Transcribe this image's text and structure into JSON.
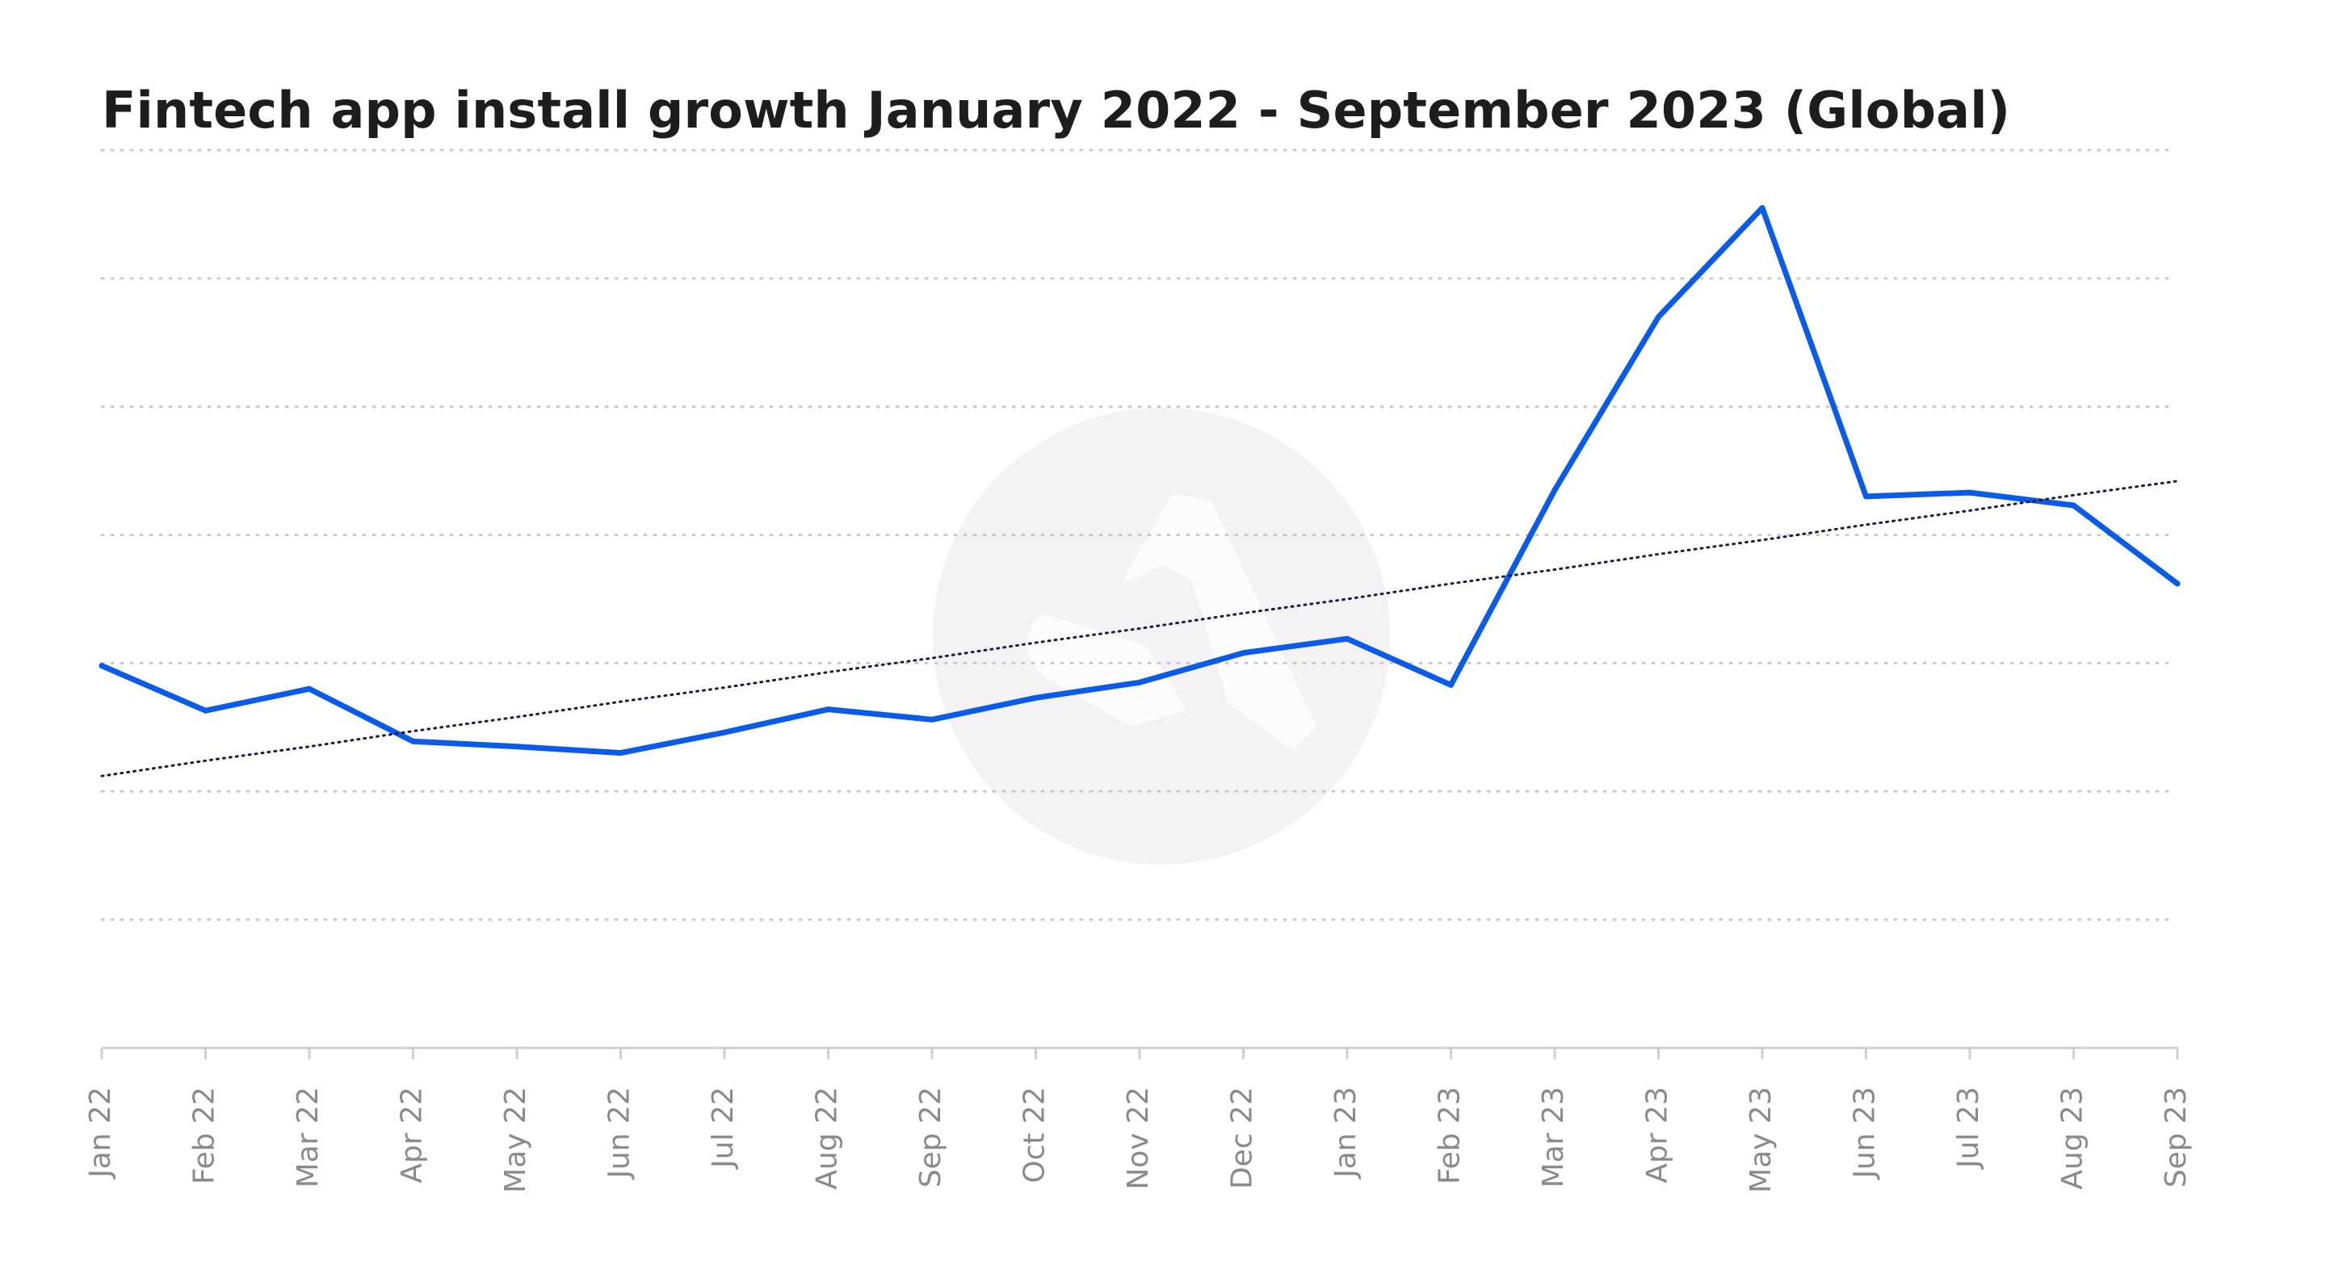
{
  "chart_data": {
    "type": "line",
    "title": "Fintech app install growth January 2022 - September 2023 (Global)",
    "xlabel": "",
    "ylabel": "",
    "ylim": [
      0,
      7
    ],
    "grid": true,
    "categories": [
      "Jan 22",
      "Feb 22",
      "Mar 22",
      "Apr 22",
      "May 22",
      "Jun 22",
      "Jul 22",
      "Aug 22",
      "Sep 22",
      "Oct 22",
      "Nov 22",
      "Dec 22",
      "Jan 23",
      "Feb 23",
      "Mar 23",
      "Apr 23",
      "May 23",
      "Jun 23",
      "Jul 23",
      "Aug 23",
      "Sep 23"
    ],
    "series": [
      {
        "values": [
          2.98,
          2.63,
          2.8,
          2.39,
          2.35,
          2.3,
          2.46,
          2.64,
          2.56,
          2.73,
          2.85,
          3.08,
          3.19,
          2.83,
          4.35,
          5.7,
          6.55,
          4.3,
          4.33,
          4.23,
          3.62
        ],
        "color": "#0a5ce8"
      },
      {
        "values": [
          2.12,
          2.24,
          2.35,
          2.47,
          2.58,
          2.7,
          2.81,
          2.93,
          3.04,
          3.16,
          3.27,
          3.39,
          3.5,
          3.62,
          3.73,
          3.85,
          3.96,
          4.08,
          4.19,
          4.31,
          4.42
        ],
        "color": "#1a1a4a",
        "style": "dotted"
      }
    ],
    "watermark_color": "#f1eff1"
  }
}
